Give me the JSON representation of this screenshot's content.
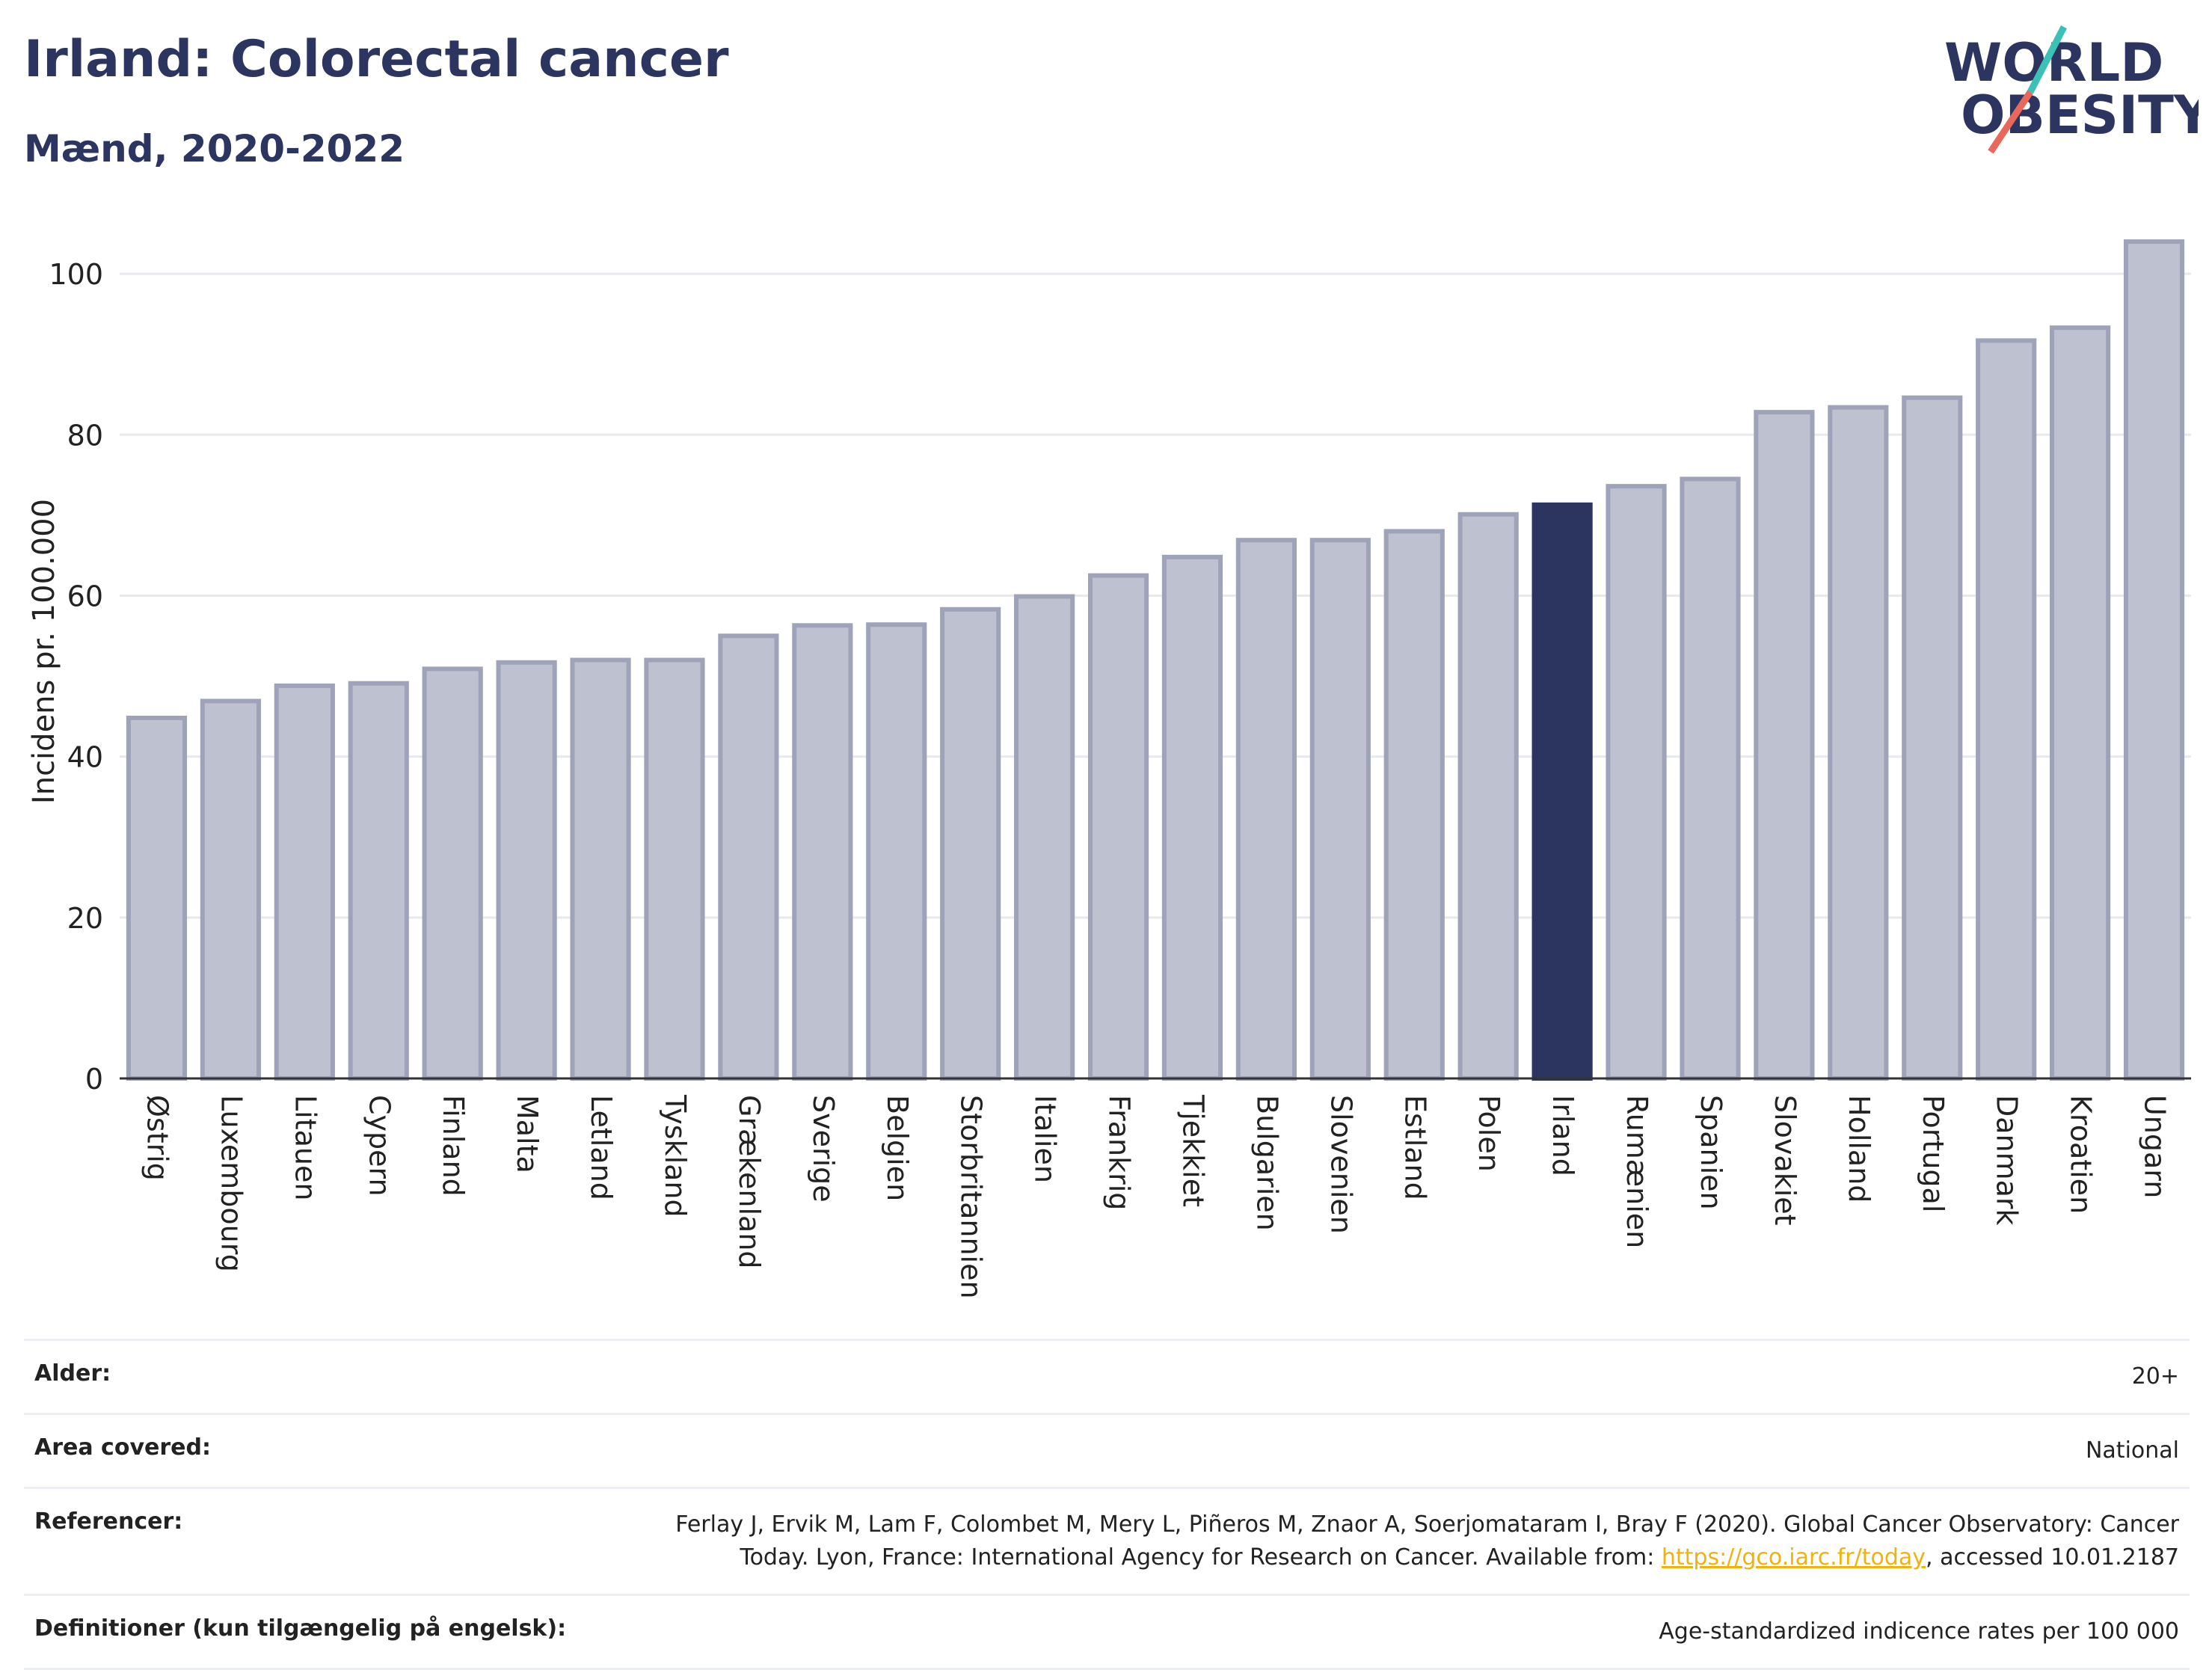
{
  "title": "Irland: Colorectal cancer",
  "subtitle": "Mænd, 2020-2022",
  "logo": {
    "line1": "WORLD",
    "line2": "OBESITY",
    "accent_teal": "#3cc1b7",
    "accent_red": "#e8685b",
    "text_color": "#2b355f"
  },
  "chart_data": {
    "type": "bar",
    "ylabel": "Incidens pr. 100.000",
    "ylim": [
      0,
      108
    ],
    "yticks": [
      0,
      20,
      40,
      60,
      80,
      100
    ],
    "grid": true,
    "highlight": "Irland",
    "colors": {
      "bar": "#bec1cf",
      "bar_edge": "#9ea3b9",
      "highlight": "#2b355f"
    },
    "categories": [
      "Østrig",
      "Luxembourg",
      "Litauen",
      "Cypern",
      "Finland",
      "Malta",
      "Letland",
      "Tyskland",
      "Grækenland",
      "Sverige",
      "Belgien",
      "Storbritannien",
      "Italien",
      "Frankrig",
      "Tjekkiet",
      "Bulgarien",
      "Slovenien",
      "Estland",
      "Polen",
      "Irland",
      "Rumænien",
      "Spanien",
      "Slovakiet",
      "Holland",
      "Portugal",
      "Danmark",
      "Kroatien",
      "Ungarn"
    ],
    "values": [
      44.8,
      46.9,
      48.8,
      49.1,
      50.9,
      51.7,
      52.0,
      52.0,
      55.0,
      56.3,
      56.4,
      58.3,
      59.9,
      62.5,
      64.8,
      66.9,
      66.9,
      68.0,
      70.1,
      71.3,
      73.6,
      74.5,
      82.8,
      83.4,
      84.6,
      91.7,
      93.3,
      104.0
    ]
  },
  "info": {
    "rows": [
      {
        "label": "Alder:",
        "value": "20+"
      },
      {
        "label": "Area covered:",
        "value": "National"
      },
      {
        "label": "Referencer:",
        "value_line1": "Ferlay J, Ervik M, Lam F, Colombet M, Mery L, Piñeros M, Znaor A, Soerjomataram I, Bray F (2020). Global Cancer Observatory: Cancer",
        "value_pre": "Today. Lyon, France: International Agency for Research on Cancer. Available from: ",
        "link": "https://gco.iarc.fr/today",
        "value_post": ", accessed 10.01.2187"
      },
      {
        "label": "Definitioner (kun tilgængelig på engelsk):",
        "value": "Age-standardized indicence rates per 100 000"
      }
    ]
  }
}
